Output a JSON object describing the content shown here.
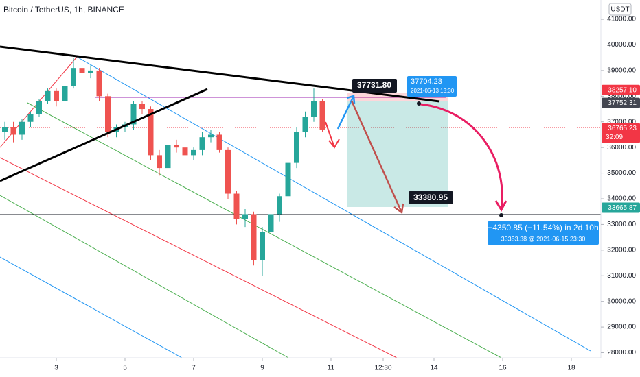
{
  "chart_data": {
    "type": "candlestick",
    "title": "Bitcoin / TetherUS, 1h, BINANCE",
    "currency": "USDT",
    "x": [
      1.5,
      1.75,
      2,
      2.25,
      2.5,
      2.75,
      3,
      3.25,
      3.5,
      3.75,
      4,
      4.25,
      4.5,
      4.75,
      5,
      5.25,
      5.5,
      5.75,
      6,
      6.25,
      6.5,
      6.75,
      7,
      7.25,
      7.5,
      7.75,
      8,
      8.25,
      8.5,
      8.75,
      9,
      9.25,
      9.5,
      9.75,
      10,
      10.25,
      10.5,
      10.75
    ],
    "open": [
      36600,
      36800,
      36500,
      37000,
      37300,
      37800,
      38200,
      37800,
      38400,
      39100,
      38900,
      39000,
      38000,
      36600,
      36800,
      36900,
      37700,
      37500,
      35700,
      35200,
      36100,
      36000,
      35700,
      35900,
      36400,
      36500,
      35900,
      34200,
      33200,
      33400,
      31600,
      32700,
      33400,
      34100,
      35400,
      36600,
      37200,
      37800
    ],
    "high": [
      37000,
      37000,
      37100,
      37400,
      37900,
      38300,
      38300,
      38500,
      39500,
      39300,
      39200,
      39100,
      38100,
      36900,
      37000,
      37800,
      37800,
      37600,
      35900,
      36300,
      36300,
      36100,
      36000,
      36600,
      36700,
      36600,
      36000,
      34300,
      33600,
      33500,
      32900,
      33600,
      34200,
      35600,
      36800,
      37400,
      38300,
      37900
    ],
    "low": [
      36300,
      36200,
      36300,
      36800,
      37200,
      37700,
      37600,
      37600,
      38300,
      38700,
      38700,
      37800,
      36400,
      36400,
      36600,
      36700,
      37300,
      35500,
      34900,
      35000,
      35800,
      35500,
      35500,
      35700,
      36200,
      35800,
      34000,
      33000,
      32900,
      31400,
      31000,
      32500,
      33100,
      33900,
      35200,
      36400,
      37000,
      36600
    ],
    "close": [
      36800,
      36500,
      37000,
      37300,
      37800,
      38200,
      37800,
      38400,
      39100,
      38900,
      39000,
      38000,
      36600,
      36800,
      36900,
      37700,
      37500,
      35700,
      35200,
      36100,
      36000,
      35700,
      35900,
      36400,
      36500,
      35900,
      34200,
      33200,
      33400,
      31600,
      32700,
      33400,
      34100,
      35400,
      36600,
      37200,
      37800,
      36700
    ],
    "up_color": "#26a69a",
    "down_color": "#ef5350",
    "xlim": [
      1.36,
      18.86
    ],
    "ylim": [
      27800,
      41750
    ],
    "xticks": [
      3,
      5,
      7,
      9,
      11,
      {
        "value": 12.52,
        "label": "12:30"
      },
      14,
      16,
      18
    ],
    "yticks": [
      {
        "value": 28000,
        "label": "28000.00"
      },
      {
        "value": 29000,
        "label": "29000.00"
      },
      {
        "value": 30000,
        "label": "30000.00"
      },
      {
        "value": 31000,
        "label": "31000.00"
      },
      {
        "value": 32000,
        "label": "32000.00"
      },
      {
        "value": 33000,
        "label": "33000.00"
      },
      {
        "value": 34000,
        "label": "34000.00"
      },
      {
        "value": 35000,
        "label": "35000.00"
      },
      {
        "value": 36000,
        "label": "36000.00"
      },
      {
        "value": 37000,
        "label": "37000.00"
      },
      {
        "value": 38000,
        "label": "38000.00"
      },
      {
        "value": 39000,
        "label": "39000.00"
      },
      {
        "value": 40000,
        "label": "40000.00"
      },
      {
        "value": 41000,
        "label": "41000.00"
      }
    ],
    "price_tags": [
      {
        "value": 38257.1,
        "label": "38257.10",
        "color": "#f23645"
      },
      {
        "value": 37752.31,
        "label": "37752.31",
        "color": "#434651"
      },
      {
        "value": 36765.23,
        "label": "36765.23",
        "color": "#f23645"
      },
      {
        "value": 33665.87,
        "label": "33665.87",
        "color": "#26a69a"
      }
    ],
    "countdown": "32:09",
    "annotations": {
      "entry": "37731.80",
      "point_price": "37704.23",
      "point_date": "2021-06-13 13:30",
      "target": "33380.95",
      "change": "−4350.85 (−11.54%) in 2d 10h",
      "change_detail": "33353.38 @ 2021-06-15  23:30"
    }
  }
}
